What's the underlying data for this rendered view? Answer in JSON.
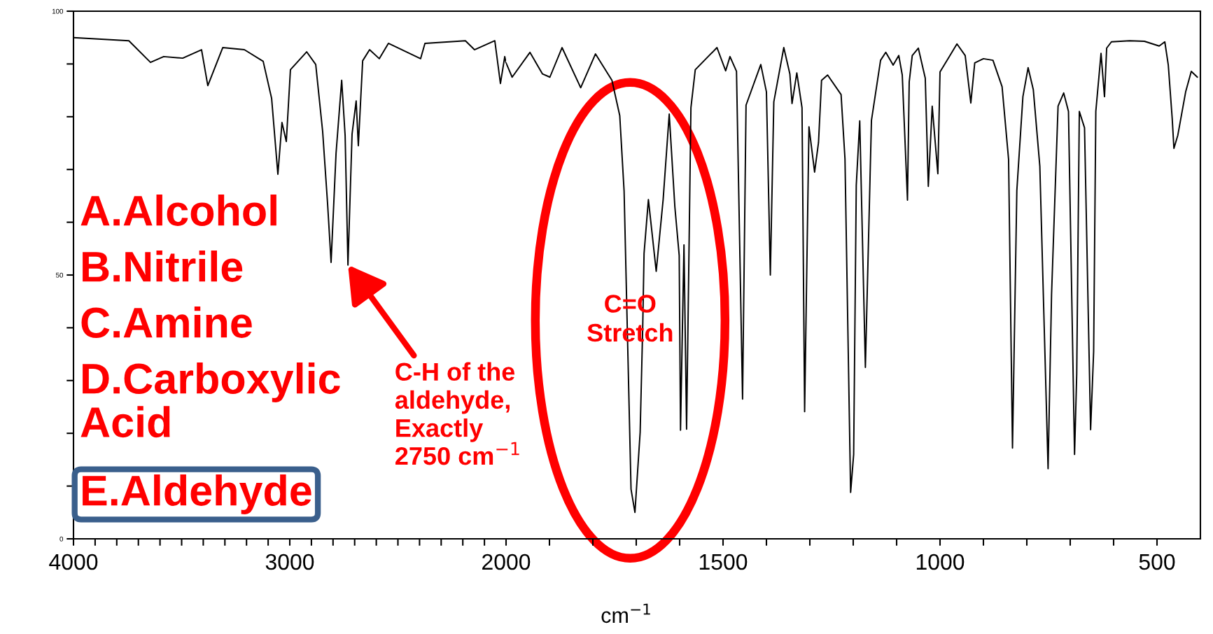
{
  "chart_data": [
    {
      "type": "line",
      "color": "#000000",
      "x": [
        4000,
        3744,
        3644,
        3583,
        3495,
        3408,
        3379,
        3310,
        3210,
        3123,
        3084,
        3055,
        3036,
        3016,
        2997,
        2922,
        2880,
        2848,
        2825,
        2809,
        2786,
        2760,
        2744,
        2731,
        2712,
        2693,
        2683,
        2663,
        2631,
        2586,
        2544,
        2395,
        2375,
        2188,
        2146,
        2052,
        2026,
        2006,
        2000
      ],
      "values": [
        95.0,
        94.4,
        90.3,
        91.4,
        91.1,
        92.7,
        85.9,
        93.1,
        92.7,
        90.5,
        83.5,
        69.1,
        78.9,
        75.3,
        88.9,
        92.3,
        89.9,
        77.2,
        63.4,
        52.4,
        73.1,
        86.9,
        76.4,
        51.9,
        76.7,
        83.0,
        74.5,
        90.6,
        92.7,
        91.0,
        93.9,
        91.0,
        93.9,
        94.4,
        92.7,
        94.4,
        86.3,
        91.4,
        90.2
      ],
      "xlim": [
        4000,
        2000
      ],
      "ylim": [
        0,
        100
      ],
      "xticks": [
        {
          "value": 4000,
          "label": "4000"
        },
        {
          "value": 3900,
          "label": null
        },
        {
          "value": 3800,
          "label": null
        },
        {
          "value": 3700,
          "label": null
        },
        {
          "value": 3600,
          "label": null
        },
        {
          "value": 3500,
          "label": null
        },
        {
          "value": 3400,
          "label": null
        },
        {
          "value": 3300,
          "label": null
        },
        {
          "value": 3200,
          "label": null
        },
        {
          "value": 3100,
          "label": null
        },
        {
          "value": 3000,
          "label": "3000"
        },
        {
          "value": 2900,
          "label": null
        },
        {
          "value": 2800,
          "label": null
        },
        {
          "value": 2700,
          "label": null
        },
        {
          "value": 2600,
          "label": null
        },
        {
          "value": 2500,
          "label": null
        },
        {
          "value": 2400,
          "label": null
        },
        {
          "value": 2300,
          "label": null
        },
        {
          "value": 2200,
          "label": null
        },
        {
          "value": 2100,
          "label": null
        }
      ],
      "yticks": [
        0,
        {
          "value": 10,
          "label": null
        },
        {
          "value": 20,
          "label": null
        },
        {
          "value": 30,
          "label": null
        },
        {
          "value": 40,
          "label": null
        },
        50,
        {
          "value": 60,
          "label": null
        },
        {
          "value": 70,
          "label": null
        },
        {
          "value": 80,
          "label": null
        },
        {
          "value": 90,
          "label": null
        },
        100
      ],
      "grid": false,
      "annotations": [
        "A.Alcohol",
        "B.Nitrile",
        "C.Amine",
        "D.Carboxylic Acid",
        "E.Aldehyde",
        {
          "text": "C-H of the aldehyde, Exactly 2750 cm$^{−1}$",
          "x": 2731,
          "y": 51.9
        }
      ]
    },
    {
      "type": "line",
      "color": "#000000",
      "xlabel": "cm$^{−1}$",
      "x": [
        2000,
        1986,
        1945,
        1916,
        1899,
        1871,
        1828,
        1794,
        1756,
        1738,
        1728,
        1712,
        1703,
        1691,
        1685,
        1682,
        1672,
        1654,
        1638,
        1624,
        1611,
        1601,
        1598,
        1590,
        1584,
        1574,
        1564,
        1514,
        1494,
        1484,
        1469,
        1455,
        1447,
        1413,
        1400,
        1391,
        1383,
        1360,
        1346,
        1341,
        1330,
        1318,
        1312,
        1302,
        1289,
        1280,
        1273,
        1259,
        1228,
        1219,
        1206,
        1199,
        1193,
        1185,
        1172,
        1158,
        1137,
        1125,
        1108,
        1095,
        1087,
        1075,
        1071,
        1064,
        1050,
        1034,
        1027,
        1018,
        1005,
        1000,
        977,
        961,
        942,
        929,
        920,
        900,
        878,
        857,
        842,
        833,
        823,
        809,
        797,
        785,
        770,
        751,
        743,
        728,
        715,
        704,
        690,
        685,
        679,
        667,
        653,
        646,
        641,
        629,
        621,
        616,
        605,
        563,
        529,
        495,
        482,
        474,
        465,
        461,
        452,
        434,
        421,
        407
      ],
      "values": [
        90.2,
        87.5,
        92.2,
        88.1,
        87.5,
        93.1,
        85.5,
        91.9,
        86.9,
        80.2,
        65.9,
        9.4,
        5.0,
        20.2,
        40.5,
        54.1,
        64.3,
        50.7,
        64.3,
        80.5,
        62.9,
        53.7,
        20.6,
        55.7,
        20.8,
        81.7,
        88.9,
        93.1,
        88.7,
        91.4,
        88.6,
        26.5,
        82.2,
        89.9,
        84.7,
        50.0,
        82.8,
        93.1,
        88.1,
        82.5,
        88.3,
        81.7,
        24.1,
        78.1,
        69.5,
        75.1,
        86.9,
        87.9,
        84.2,
        72.0,
        8.8,
        16.0,
        67.0,
        79.2,
        32.5,
        79.3,
        90.7,
        92.2,
        89.8,
        91.6,
        87.9,
        64.2,
        86.6,
        91.6,
        93.0,
        87.3,
        66.8,
        82.0,
        69.2,
        88.5,
        91.6,
        93.8,
        91.6,
        82.6,
        90.2,
        91.0,
        90.7,
        85.7,
        71.9,
        17.2,
        66.0,
        83.8,
        89.3,
        85.1,
        70.6,
        13.3,
        46.3,
        82.0,
        84.5,
        81.0,
        16.0,
        31.2,
        81.0,
        77.9,
        20.7,
        35.5,
        81.0,
        92.0,
        83.8,
        93.0,
        94.2,
        94.4,
        94.3,
        93.4,
        94.2,
        89.8,
        79.7,
        74.0,
        76.5,
        84.7,
        88.6,
        87.5
      ],
      "xlim": [
        2000,
        400
      ],
      "ylim": [
        0,
        100
      ],
      "xticks": [
        {
          "value": 2000,
          "label": "2000"
        },
        {
          "value": 1900,
          "label": null
        },
        {
          "value": 1800,
          "label": null
        },
        {
          "value": 1700,
          "label": null
        },
        {
          "value": 1600,
          "label": null
        },
        {
          "value": 1500,
          "label": "1500"
        },
        {
          "value": 1400,
          "label": null
        },
        {
          "value": 1300,
          "label": null
        },
        {
          "value": 1200,
          "label": null
        },
        {
          "value": 1100,
          "label": null
        },
        {
          "value": 1000,
          "label": "1000"
        },
        {
          "value": 900,
          "label": null
        },
        {
          "value": 800,
          "label": null
        },
        {
          "value": 700,
          "label": null
        },
        {
          "value": 600,
          "label": null
        },
        {
          "value": 500,
          "label": "500"
        }
      ],
      "tick_labels": "x",
      "grid": false,
      "annotations": [
        {
          "text": "C=O Stretch",
          "x": 1714,
          "y": 41.4
        }
      ]
    }
  ]
}
